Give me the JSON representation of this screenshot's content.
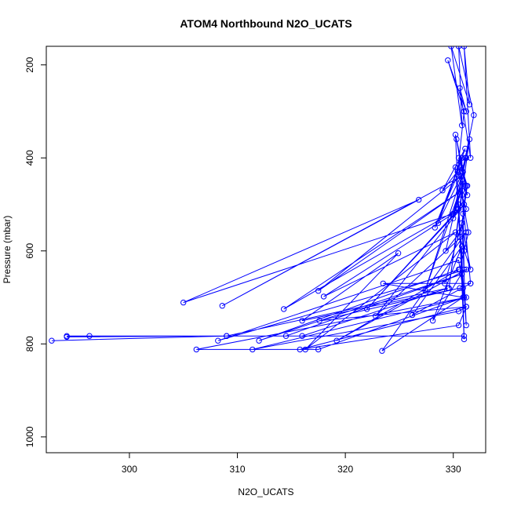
{
  "chart_data": {
    "type": "line",
    "title": "ATOM4 Northbound N2O_UCATS",
    "xlabel": "N2O_UCATS",
    "ylabel": "Pressure (mbar)",
    "xlim": [
      292.3,
      333.0
    ],
    "ylim": [
      1034,
      160
    ],
    "y_reversed": true,
    "x_ticks": [
      "300",
      "310",
      "320",
      "330"
    ],
    "y_ticks": [
      "200",
      "400",
      "600",
      "800",
      "1000"
    ],
    "markers": "open-circle",
    "color": "#0000ff",
    "grid": false,
    "series": [
      {
        "x": [
          292.8,
          309.0,
          294.2,
          296.3,
          331.0,
          294.2,
          309.0,
          329.5,
          316.0,
          314.5,
          330.8,
          312.0,
          330.5,
          319.2,
          331.2,
          308.2,
          330.5,
          331.0,
          317.5,
          306.2,
          331.2,
          311.4,
          330.5,
          331.2,
          315.8,
          330.5,
          331.2,
          317.6,
          330.6,
          316.0,
          324.9,
          316.3,
          330.2,
          318.0,
          330.0,
          305.0,
          326.8,
          308.6,
          330.7,
          317.5,
          330.8,
          314.3,
          330.5,
          322.0,
          331.0,
          322.8,
          331.2,
          323.4,
          330.9,
          323.5,
          331.6,
          326.2,
          330.8,
          328.1,
          331.0,
          330.8,
          328.3,
          330.7,
          329.0,
          331.1,
          328.6,
          330.9,
          327.4,
          330.9,
          330.0,
          331.5,
          329.6,
          330.8,
          330.0,
          331.2,
          329.3,
          330.6,
          330.2,
          331.3,
          330.4,
          331.0,
          329.5,
          331.2,
          330.6,
          331.6,
          331.0,
          331.5,
          329.8,
          330.8,
          330.5,
          331.9,
          331.1,
          330.8,
          330.3,
          331.2,
          330.9,
          331.0,
          330.6,
          331.4,
          330.8,
          331.2,
          329.2,
          331.6,
          330.5,
          331.3,
          330.6,
          331.6,
          330.8,
          331.2,
          330.2,
          330.9,
          330.5,
          331.0,
          330.8
        ],
        "y": [
          793,
          783,
          785,
          783,
          783,
          783,
          783,
          680,
          783,
          783,
          650,
          793,
          640,
          793,
          640,
          793,
          620,
          700,
          812,
          812,
          700,
          812,
          730,
          720,
          812,
          760,
          720,
          750,
          680,
          750,
          605,
          812,
          560,
          698,
          520,
          711,
          490,
          718,
          440,
          686,
          470,
          725,
          510,
          725,
          500,
          740,
          560,
          815,
          700,
          670,
          670,
          738,
          590,
          750,
          640,
          400,
          550,
          420,
          470,
          380,
          540,
          430,
          685,
          450,
          530,
          360,
          680,
          470,
          520,
          400,
          600,
          560,
          350,
          480,
          430,
          300,
          190,
          300,
          250,
          400,
          160,
          285,
          160,
          330,
          160,
          308,
          400,
          430,
          360,
          460,
          520,
          600,
          640,
          560,
          480,
          510,
          670,
          670,
          400,
          460,
          570,
          640,
          540,
          760,
          420,
          680,
          500,
          790,
          600
        ]
      }
    ]
  }
}
